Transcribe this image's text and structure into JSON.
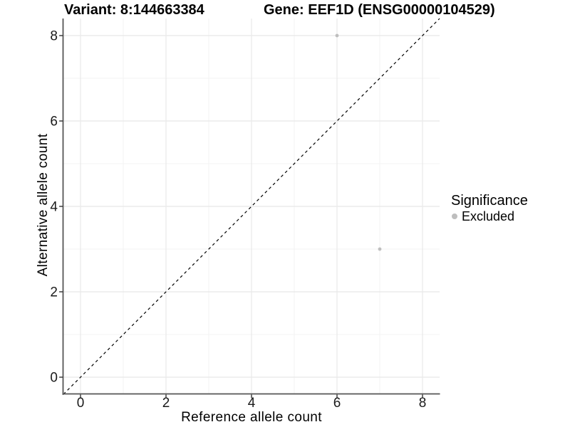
{
  "chart_data": {
    "type": "scatter",
    "titles": [
      "Variant: 8:144663384",
      "Gene: EEF1D (ENSG00000104529)"
    ],
    "xlabel": "Reference allele count",
    "ylabel": "Alternative allele count",
    "xlim": [
      -0.4,
      8.4
    ],
    "ylim": [
      -0.4,
      8.4
    ],
    "x_ticks": [
      0,
      2,
      4,
      6,
      8
    ],
    "y_ticks": [
      0,
      2,
      4,
      6,
      8
    ],
    "x_minor_ticks": [
      1,
      3,
      5,
      7
    ],
    "y_minor_ticks": [
      1,
      3,
      5,
      7
    ],
    "grid": "major+minor",
    "identity_line": {
      "equation": "y = x",
      "style": "dashed",
      "color": "#000000"
    },
    "series": [
      {
        "name": "Excluded",
        "color": "#bebebe",
        "marker": "circle",
        "points": [
          [
            6,
            8
          ],
          [
            7,
            3
          ]
        ]
      }
    ],
    "legend": {
      "title": "Significance",
      "position": "right",
      "items": [
        {
          "label": "Excluded",
          "color": "#bebebe"
        }
      ]
    }
  },
  "colors": {
    "background": "#ffffff",
    "grid_major": "#e8e8e8",
    "grid_minor": "#f3f3f3",
    "axis_line": "#555555",
    "tick_mark": "#222222",
    "tick_text": "#1a1a1a",
    "point": "#bebebe"
  }
}
